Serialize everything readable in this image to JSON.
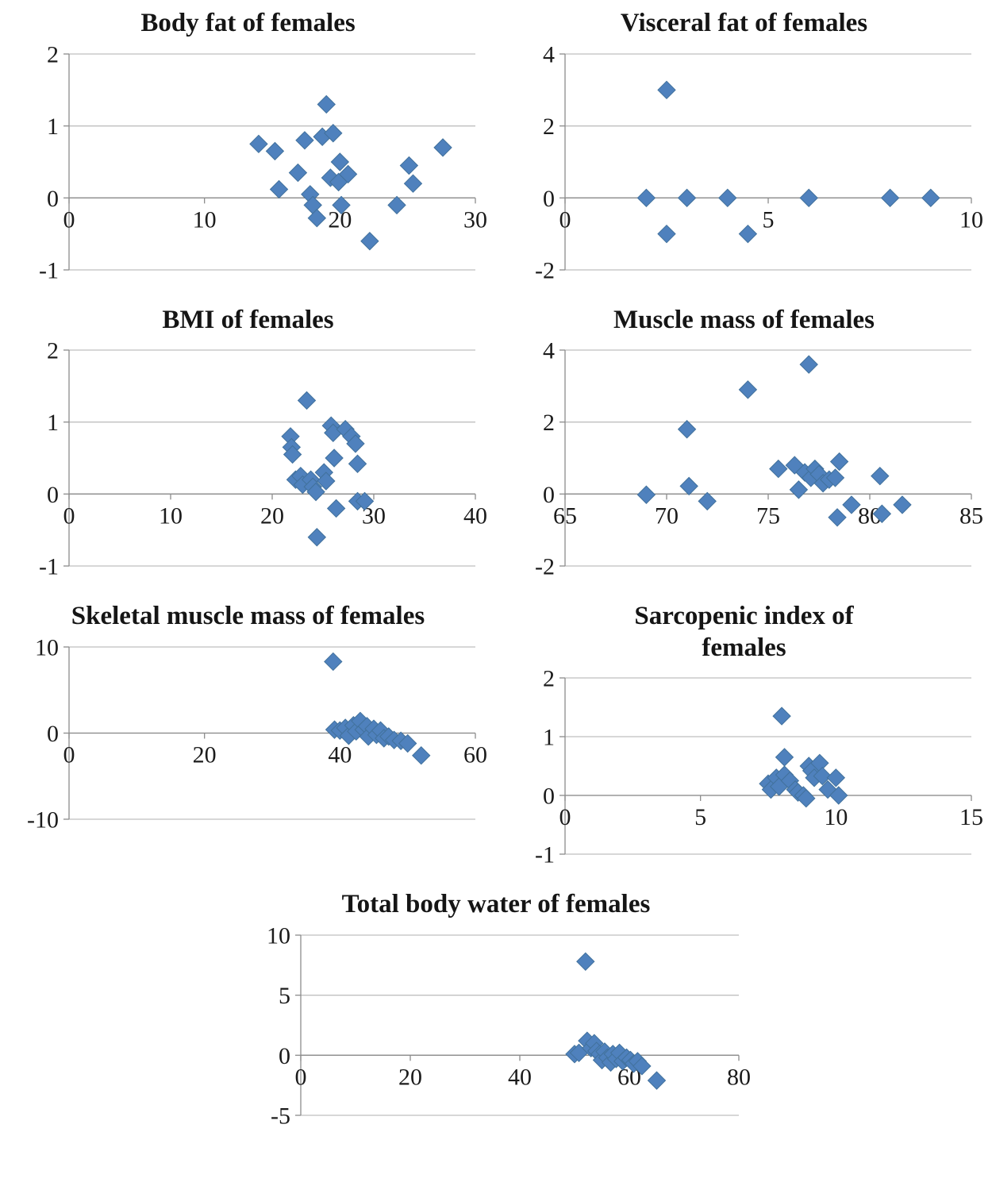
{
  "style": {
    "marker": "#4F81BD",
    "marker_edge": "#41719C",
    "grid": "#BFBFBF",
    "axis": "#8C8C8C",
    "text": "#1B1B1B"
  },
  "chart_data": [
    {
      "type": "scatter",
      "title": "Body fat of females",
      "xlabel": "",
      "ylabel": "",
      "xlim": [
        0,
        30
      ],
      "xticks": [
        0,
        10,
        20,
        30
      ],
      "ylim": [
        -1,
        2
      ],
      "yticks": [
        -1,
        0,
        1,
        2
      ],
      "grid": "horizontal",
      "legend": "none",
      "points": [
        [
          14,
          0.75
        ],
        [
          15.2,
          0.65
        ],
        [
          15.5,
          0.12
        ],
        [
          16.9,
          0.35
        ],
        [
          17.4,
          0.8
        ],
        [
          17.8,
          0.05
        ],
        [
          18,
          -0.1
        ],
        [
          18.3,
          -0.28
        ],
        [
          18.7,
          0.85
        ],
        [
          19,
          1.3
        ],
        [
          19.3,
          0.28
        ],
        [
          19.5,
          0.9
        ],
        [
          19.9,
          0.22
        ],
        [
          20,
          0.5
        ],
        [
          20.1,
          -0.1
        ],
        [
          20.6,
          0.33
        ],
        [
          22.2,
          -0.6
        ],
        [
          24.2,
          -0.1
        ],
        [
          25.1,
          0.45
        ],
        [
          25.4,
          0.2
        ],
        [
          27.6,
          0.7
        ]
      ]
    },
    {
      "type": "scatter",
      "title": "Visceral fat of females",
      "xlabel": "",
      "ylabel": "",
      "xlim": [
        0,
        10
      ],
      "xticks": [
        0,
        5,
        10
      ],
      "ylim": [
        -2,
        4
      ],
      "yticks": [
        -2,
        0,
        2,
        4
      ],
      "grid": "horizontal",
      "legend": "none",
      "points": [
        [
          2,
          0
        ],
        [
          2.5,
          3
        ],
        [
          2.5,
          -1
        ],
        [
          3,
          0
        ],
        [
          4,
          0
        ],
        [
          4.5,
          -1
        ],
        [
          6,
          0
        ],
        [
          8,
          0
        ],
        [
          9,
          0
        ]
      ]
    },
    {
      "type": "scatter",
      "title": "BMI of females",
      "xlabel": "",
      "ylabel": "",
      "xlim": [
        0,
        40
      ],
      "xticks": [
        0,
        10,
        20,
        30,
        40
      ],
      "ylim": [
        -1,
        2
      ],
      "yticks": [
        -1,
        0,
        1,
        2
      ],
      "grid": "horizontal",
      "legend": "none",
      "points": [
        [
          21.8,
          0.8
        ],
        [
          21.9,
          0.65
        ],
        [
          22,
          0.55
        ],
        [
          22.3,
          0.2
        ],
        [
          22.8,
          0.25
        ],
        [
          23,
          0.13
        ],
        [
          23.4,
          1.3
        ],
        [
          23.8,
          0.2
        ],
        [
          24,
          0.1
        ],
        [
          24.3,
          0.03
        ],
        [
          24.4,
          -0.6
        ],
        [
          25.1,
          0.3
        ],
        [
          25.3,
          0.18
        ],
        [
          25.8,
          0.95
        ],
        [
          26,
          0.85
        ],
        [
          26.1,
          0.5
        ],
        [
          26.3,
          -0.2
        ],
        [
          27.2,
          0.9
        ],
        [
          27.8,
          0.8
        ],
        [
          28.2,
          0.7
        ],
        [
          28.4,
          0.42
        ],
        [
          28.4,
          -0.1
        ],
        [
          29.1,
          -0.1
        ]
      ]
    },
    {
      "type": "scatter",
      "title": "Muscle mass of females",
      "xlabel": "",
      "ylabel": "",
      "xlim": [
        65,
        85
      ],
      "xticks": [
        65,
        70,
        75,
        80,
        85
      ],
      "ylim": [
        -2,
        4
      ],
      "yticks": [
        -2,
        0,
        2,
        4
      ],
      "grid": "horizontal",
      "legend": "none",
      "points": [
        [
          69,
          -0.02
        ],
        [
          71,
          1.8
        ],
        [
          71.1,
          0.22
        ],
        [
          72,
          -0.2
        ],
        [
          74,
          2.9
        ],
        [
          75.5,
          0.7
        ],
        [
          76.3,
          0.8
        ],
        [
          76.5,
          0.12
        ],
        [
          76.8,
          0.6
        ],
        [
          77,
          3.6
        ],
        [
          77.1,
          0.45
        ],
        [
          77.3,
          0.7
        ],
        [
          77.5,
          0.55
        ],
        [
          77.7,
          0.3
        ],
        [
          78,
          0.4
        ],
        [
          78.3,
          0.45
        ],
        [
          78.4,
          -0.65
        ],
        [
          78.5,
          0.9
        ],
        [
          79.1,
          -0.3
        ],
        [
          80.5,
          0.5
        ],
        [
          80.6,
          -0.55
        ],
        [
          81.6,
          -0.3
        ]
      ]
    },
    {
      "type": "scatter",
      "title": "Skeletal muscle mass of females",
      "xlabel": "",
      "ylabel": "",
      "xlim": [
        0,
        60
      ],
      "xticks": [
        0,
        20,
        40,
        60
      ],
      "ylim": [
        -10,
        10
      ],
      "yticks": [
        -10,
        0,
        10
      ],
      "grid": "horizontal",
      "legend": "none",
      "points": [
        [
          39,
          8.3
        ],
        [
          39.2,
          0.4
        ],
        [
          40,
          0.3
        ],
        [
          40.8,
          0.6
        ],
        [
          41.3,
          -0.3
        ],
        [
          42,
          0.9
        ],
        [
          42.4,
          0.2
        ],
        [
          43,
          1.4
        ],
        [
          43.5,
          0.4
        ],
        [
          44,
          0.8
        ],
        [
          44.2,
          -0.4
        ],
        [
          45,
          0.5
        ],
        [
          45.4,
          -0.2
        ],
        [
          46,
          0.3
        ],
        [
          46.5,
          -0.6
        ],
        [
          47.2,
          -0.4
        ],
        [
          48,
          -0.8
        ],
        [
          49,
          -0.9
        ],
        [
          50,
          -1.2
        ],
        [
          52,
          -2.6
        ]
      ]
    },
    {
      "type": "scatter",
      "title": "Sarcopenic index of females",
      "xlabel": "",
      "ylabel": "",
      "xlim": [
        0,
        15
      ],
      "xticks": [
        0,
        5,
        10,
        15
      ],
      "ylim": [
        -1,
        2
      ],
      "yticks": [
        -1,
        0,
        1,
        2
      ],
      "grid": "horizontal",
      "legend": "none",
      "points": [
        [
          7.5,
          0.2
        ],
        [
          7.6,
          0.1
        ],
        [
          7.8,
          0.3
        ],
        [
          7.9,
          0.15
        ],
        [
          8,
          1.35
        ],
        [
          8.1,
          0.65
        ],
        [
          8.1,
          0.35
        ],
        [
          8.3,
          0.25
        ],
        [
          8.5,
          0.1
        ],
        [
          8.6,
          0.05
        ],
        [
          8.8,
          0
        ],
        [
          8.9,
          -0.05
        ],
        [
          9,
          0.5
        ],
        [
          9.1,
          0.42
        ],
        [
          9.2,
          0.3
        ],
        [
          9.4,
          0.55
        ],
        [
          9.5,
          0.33
        ],
        [
          9.7,
          0.1
        ],
        [
          10,
          0.3
        ],
        [
          10.1,
          0
        ]
      ]
    },
    {
      "type": "scatter",
      "title": "Total body water of females",
      "xlabel": "",
      "ylabel": "",
      "xlim": [
        0,
        80
      ],
      "xticks": [
        0,
        20,
        40,
        60,
        80
      ],
      "ylim": [
        -5,
        10
      ],
      "yticks": [
        -5,
        0,
        5,
        10
      ],
      "grid": "horizontal",
      "legend": "none",
      "points": [
        [
          50,
          0.1
        ],
        [
          50.8,
          0.2
        ],
        [
          52,
          7.8
        ],
        [
          52.3,
          1.2
        ],
        [
          53,
          0.6
        ],
        [
          53.6,
          1
        ],
        [
          54,
          0.35
        ],
        [
          54.6,
          0.1
        ],
        [
          55,
          -0.4
        ],
        [
          55.5,
          0.3
        ],
        [
          56,
          -0.2
        ],
        [
          56.6,
          -0.6
        ],
        [
          57,
          0.1
        ],
        [
          57.6,
          -0.3
        ],
        [
          58.2,
          0.2
        ],
        [
          58.8,
          -0.5
        ],
        [
          59.5,
          -0.2
        ],
        [
          60.2,
          -0.4
        ],
        [
          60.8,
          -0.7
        ],
        [
          61.5,
          -0.5
        ],
        [
          62.3,
          -0.9
        ],
        [
          65,
          -2.1
        ]
      ]
    }
  ]
}
